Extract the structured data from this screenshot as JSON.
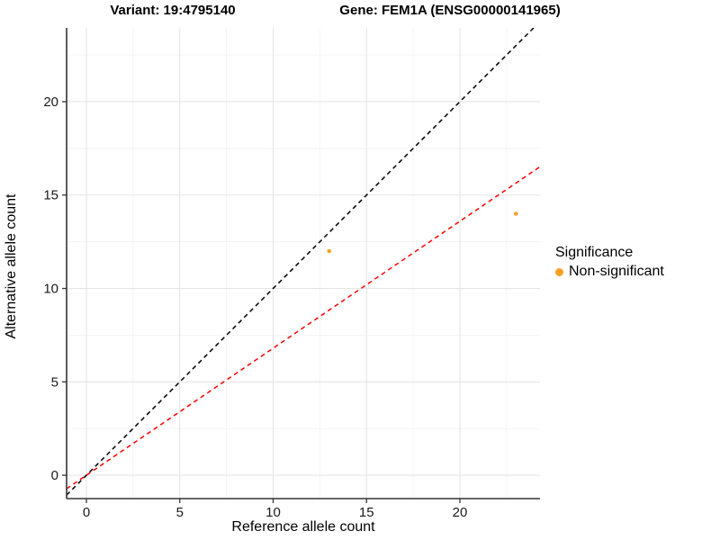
{
  "title_left": "Variant: 19:4795140",
  "title_right": "Gene: FEM1A (ENSG00000141965)",
  "chart_data": {
    "type": "scatter",
    "xlabel": "Reference allele count",
    "ylabel": "Alternative allele count",
    "xlim": [
      -1.06,
      24.29
    ],
    "ylim": [
      -1.25,
      23.95
    ],
    "x_major_ticks": [
      0,
      5,
      10,
      15,
      20
    ],
    "y_major_ticks": [
      0,
      5,
      10,
      15,
      20
    ],
    "x_minor_ticks": [
      2.5,
      7.5,
      12.5,
      17.5,
      22.5
    ],
    "y_minor_ticks": [
      2.5,
      7.5,
      12.5,
      17.5,
      22.5
    ],
    "grid": true,
    "series": [
      {
        "name": "Non-significant",
        "color": "#FB9E26",
        "points": [
          {
            "x": 13,
            "y": 12
          },
          {
            "x": 23,
            "y": 14
          }
        ]
      }
    ],
    "lines": [
      {
        "name": "identity-line",
        "slope": 1,
        "intercept": 0,
        "color": "#000000",
        "style": "dashed"
      },
      {
        "name": "fitted-ratio-line",
        "slope": 0.68,
        "intercept": 0,
        "color": "#FF0000",
        "style": "dashed"
      }
    ],
    "legend": {
      "title": "Significance",
      "position": "right",
      "items": [
        {
          "label": "Non-significant",
          "color": "#FB9E26"
        }
      ]
    },
    "colors": {
      "major_grid": "#E5E5E5",
      "minor_grid": "#F3F3F3",
      "axis_line": "#333333",
      "tick_label": "#1a1a1a"
    }
  }
}
